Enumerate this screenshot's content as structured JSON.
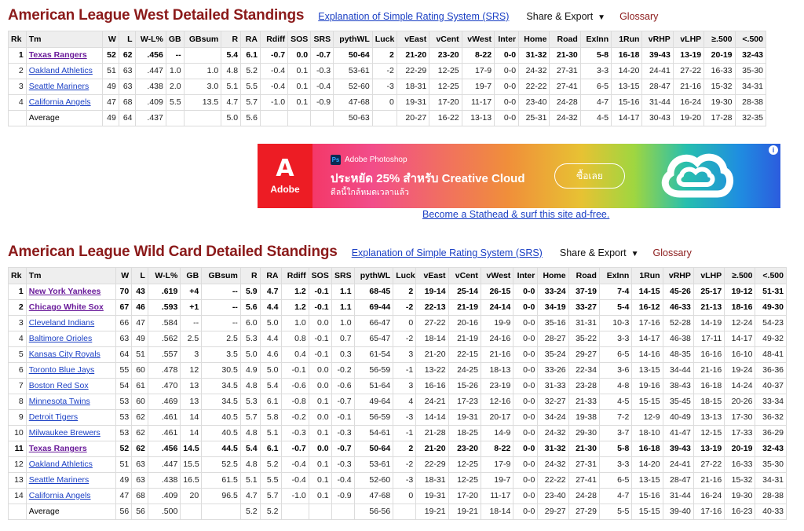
{
  "links": {
    "srs": "Explanation of Simple Rating System (SRS)",
    "share_export": "Share & Export",
    "glossary": "Glossary"
  },
  "icons": {
    "caret": "chevron-down-icon",
    "ad_info": "info-icon",
    "adobe_logo": "adobe-logo-icon",
    "photoshop_badge": "photoshop-icon",
    "creative_cloud": "creative-cloud-icon"
  },
  "colors": {
    "title": "#8b1a1a",
    "link": "#1a3fc4",
    "visited": "#6a1b9a",
    "header_bg": "#eeeeee"
  },
  "west": {
    "title": "American League West Detailed Standings",
    "columns": [
      "Rk",
      "Tm",
      "W",
      "L",
      "W-L%",
      "GB",
      "GBsum",
      "R",
      "RA",
      "Rdiff",
      "SOS",
      "SRS",
      "pythWL",
      "Luck",
      "vEast",
      "vCent",
      "vWest",
      "Inter",
      "Home",
      "Road",
      "ExInn",
      "1Run",
      "vRHP",
      "vLHP",
      "≥.500",
      "<.500"
    ],
    "rows": [
      [
        "1",
        "Texas Rangers",
        "52",
        "62",
        ".456",
        "--",
        "",
        "5.4",
        "6.1",
        "-0.7",
        "0.0",
        "-0.7",
        "50-64",
        "2",
        "21-20",
        "23-20",
        "8-22",
        "0-0",
        "31-32",
        "21-30",
        "5-8",
        "16-18",
        "39-43",
        "13-19",
        "20-19",
        "32-43"
      ],
      [
        "2",
        "Oakland Athletics",
        "51",
        "63",
        ".447",
        "1.0",
        "1.0",
        "4.8",
        "5.2",
        "-0.4",
        "0.1",
        "-0.3",
        "53-61",
        "-2",
        "22-29",
        "12-25",
        "17-9",
        "0-0",
        "24-32",
        "27-31",
        "3-3",
        "14-20",
        "24-41",
        "27-22",
        "16-33",
        "35-30"
      ],
      [
        "3",
        "Seattle Mariners",
        "49",
        "63",
        ".438",
        "2.0",
        "3.0",
        "5.1",
        "5.5",
        "-0.4",
        "0.1",
        "-0.4",
        "52-60",
        "-3",
        "18-31",
        "12-25",
        "19-7",
        "0-0",
        "22-22",
        "27-41",
        "6-5",
        "13-15",
        "28-47",
        "21-16",
        "15-32",
        "34-31"
      ],
      [
        "4",
        "California Angels",
        "47",
        "68",
        ".409",
        "5.5",
        "13.5",
        "4.7",
        "5.7",
        "-1.0",
        "0.1",
        "-0.9",
        "47-68",
        "0",
        "19-31",
        "17-20",
        "11-17",
        "0-0",
        "23-40",
        "24-28",
        "4-7",
        "15-16",
        "31-44",
        "16-24",
        "19-30",
        "28-38"
      ],
      [
        "",
        "Average",
        "49",
        "64",
        ".437",
        "",
        "",
        "5.0",
        "5.6",
        "",
        "",
        "",
        "50-63",
        "",
        "20-27",
        "16-22",
        "13-13",
        "0-0",
        "25-31",
        "24-32",
        "4-5",
        "14-17",
        "30-43",
        "19-20",
        "17-28",
        "32-35"
      ]
    ]
  },
  "ad": {
    "logo_text": "Adobe",
    "product": "Adobe Photoshop",
    "badge": "Ps",
    "headline": "ประหยัด 25% สำหรับ Creative Cloud",
    "sub": "ดีลนี้ใกล้หมดเวลาแล้ว",
    "cta": "ซื้อเลย",
    "stathead": "Become a Stathead & surf this site ad-free."
  },
  "wildcard": {
    "title": "American League Wild Card Detailed Standings",
    "columns": [
      "Rk",
      "Tm",
      "W",
      "L",
      "W-L%",
      "GB",
      "GBsum",
      "R",
      "RA",
      "Rdiff",
      "SOS",
      "SRS",
      "pythWL",
      "Luck",
      "vEast",
      "vCent",
      "vWest",
      "Inter",
      "Home",
      "Road",
      "ExInn",
      "1Run",
      "vRHP",
      "vLHP",
      "≥.500",
      "<.500"
    ],
    "rows": [
      [
        "1",
        "New York Yankees",
        "70",
        "43",
        ".619",
        "+4",
        "--",
        "5.9",
        "4.7",
        "1.2",
        "-0.1",
        "1.1",
        "68-45",
        "2",
        "19-14",
        "25-14",
        "26-15",
        "0-0",
        "33-24",
        "37-19",
        "7-4",
        "14-15",
        "45-26",
        "25-17",
        "19-12",
        "51-31"
      ],
      [
        "2",
        "Chicago White Sox",
        "67",
        "46",
        ".593",
        "+1",
        "--",
        "5.6",
        "4.4",
        "1.2",
        "-0.1",
        "1.1",
        "69-44",
        "-2",
        "22-13",
        "21-19",
        "24-14",
        "0-0",
        "34-19",
        "33-27",
        "5-4",
        "16-12",
        "46-33",
        "21-13",
        "18-16",
        "49-30"
      ],
      [
        "3",
        "Cleveland Indians",
        "66",
        "47",
        ".584",
        "--",
        "--",
        "6.0",
        "5.0",
        "1.0",
        "0.0",
        "1.0",
        "66-47",
        "0",
        "27-22",
        "20-16",
        "19-9",
        "0-0",
        "35-16",
        "31-31",
        "10-3",
        "17-16",
        "52-28",
        "14-19",
        "12-24",
        "54-23"
      ],
      [
        "4",
        "Baltimore Orioles",
        "63",
        "49",
        ".562",
        "2.5",
        "2.5",
        "5.3",
        "4.4",
        "0.8",
        "-0.1",
        "0.7",
        "65-47",
        "-2",
        "18-14",
        "21-19",
        "24-16",
        "0-0",
        "28-27",
        "35-22",
        "3-3",
        "14-17",
        "46-38",
        "17-11",
        "14-17",
        "49-32"
      ],
      [
        "5",
        "Kansas City Royals",
        "64",
        "51",
        ".557",
        "3",
        "3.5",
        "5.0",
        "4.6",
        "0.4",
        "-0.1",
        "0.3",
        "61-54",
        "3",
        "21-20",
        "22-15",
        "21-16",
        "0-0",
        "35-24",
        "29-27",
        "6-5",
        "14-16",
        "48-35",
        "16-16",
        "16-10",
        "48-41"
      ],
      [
        "6",
        "Toronto Blue Jays",
        "55",
        "60",
        ".478",
        "12",
        "30.5",
        "4.9",
        "5.0",
        "-0.1",
        "0.0",
        "-0.2",
        "56-59",
        "-1",
        "13-22",
        "24-25",
        "18-13",
        "0-0",
        "33-26",
        "22-34",
        "3-6",
        "13-15",
        "34-44",
        "21-16",
        "19-24",
        "36-36"
      ],
      [
        "7",
        "Boston Red Sox",
        "54",
        "61",
        ".470",
        "13",
        "34.5",
        "4.8",
        "5.4",
        "-0.6",
        "0.0",
        "-0.6",
        "51-64",
        "3",
        "16-16",
        "15-26",
        "23-19",
        "0-0",
        "31-33",
        "23-28",
        "4-8",
        "19-16",
        "38-43",
        "16-18",
        "14-24",
        "40-37"
      ],
      [
        "8",
        "Minnesota Twins",
        "53",
        "60",
        ".469",
        "13",
        "34.5",
        "5.3",
        "6.1",
        "-0.8",
        "0.1",
        "-0.7",
        "49-64",
        "4",
        "24-21",
        "17-23",
        "12-16",
        "0-0",
        "32-27",
        "21-33",
        "4-5",
        "15-15",
        "35-45",
        "18-15",
        "20-26",
        "33-34"
      ],
      [
        "9",
        "Detroit Tigers",
        "53",
        "62",
        ".461",
        "14",
        "40.5",
        "5.7",
        "5.8",
        "-0.2",
        "0.0",
        "-0.1",
        "56-59",
        "-3",
        "14-14",
        "19-31",
        "20-17",
        "0-0",
        "34-24",
        "19-38",
        "7-2",
        "12-9",
        "40-49",
        "13-13",
        "17-30",
        "36-32"
      ],
      [
        "10",
        "Milwaukee Brewers",
        "53",
        "62",
        ".461",
        "14",
        "40.5",
        "4.8",
        "5.1",
        "-0.3",
        "0.1",
        "-0.3",
        "54-61",
        "-1",
        "21-28",
        "18-25",
        "14-9",
        "0-0",
        "24-32",
        "29-30",
        "3-7",
        "18-10",
        "41-47",
        "12-15",
        "17-33",
        "36-29"
      ],
      [
        "11",
        "Texas Rangers",
        "52",
        "62",
        ".456",
        "14.5",
        "44.5",
        "5.4",
        "6.1",
        "-0.7",
        "0.0",
        "-0.7",
        "50-64",
        "2",
        "21-20",
        "23-20",
        "8-22",
        "0-0",
        "31-32",
        "21-30",
        "5-8",
        "16-18",
        "39-43",
        "13-19",
        "20-19",
        "32-43"
      ],
      [
        "12",
        "Oakland Athletics",
        "51",
        "63",
        ".447",
        "15.5",
        "52.5",
        "4.8",
        "5.2",
        "-0.4",
        "0.1",
        "-0.3",
        "53-61",
        "-2",
        "22-29",
        "12-25",
        "17-9",
        "0-0",
        "24-32",
        "27-31",
        "3-3",
        "14-20",
        "24-41",
        "27-22",
        "16-33",
        "35-30"
      ],
      [
        "13",
        "Seattle Mariners",
        "49",
        "63",
        ".438",
        "16.5",
        "61.5",
        "5.1",
        "5.5",
        "-0.4",
        "0.1",
        "-0.4",
        "52-60",
        "-3",
        "18-31",
        "12-25",
        "19-7",
        "0-0",
        "22-22",
        "27-41",
        "6-5",
        "13-15",
        "28-47",
        "21-16",
        "15-32",
        "34-31"
      ],
      [
        "14",
        "California Angels",
        "47",
        "68",
        ".409",
        "20",
        "96.5",
        "4.7",
        "5.7",
        "-1.0",
        "0.1",
        "-0.9",
        "47-68",
        "0",
        "19-31",
        "17-20",
        "11-17",
        "0-0",
        "23-40",
        "24-28",
        "4-7",
        "15-16",
        "31-44",
        "16-24",
        "19-30",
        "28-38"
      ],
      [
        "",
        "Average",
        "56",
        "56",
        ".500",
        "",
        "",
        "5.2",
        "5.2",
        "",
        "",
        "",
        "56-56",
        "",
        "19-21",
        "19-21",
        "18-14",
        "0-0",
        "29-27",
        "27-29",
        "5-5",
        "15-15",
        "39-40",
        "17-16",
        "16-23",
        "40-33"
      ]
    ]
  }
}
